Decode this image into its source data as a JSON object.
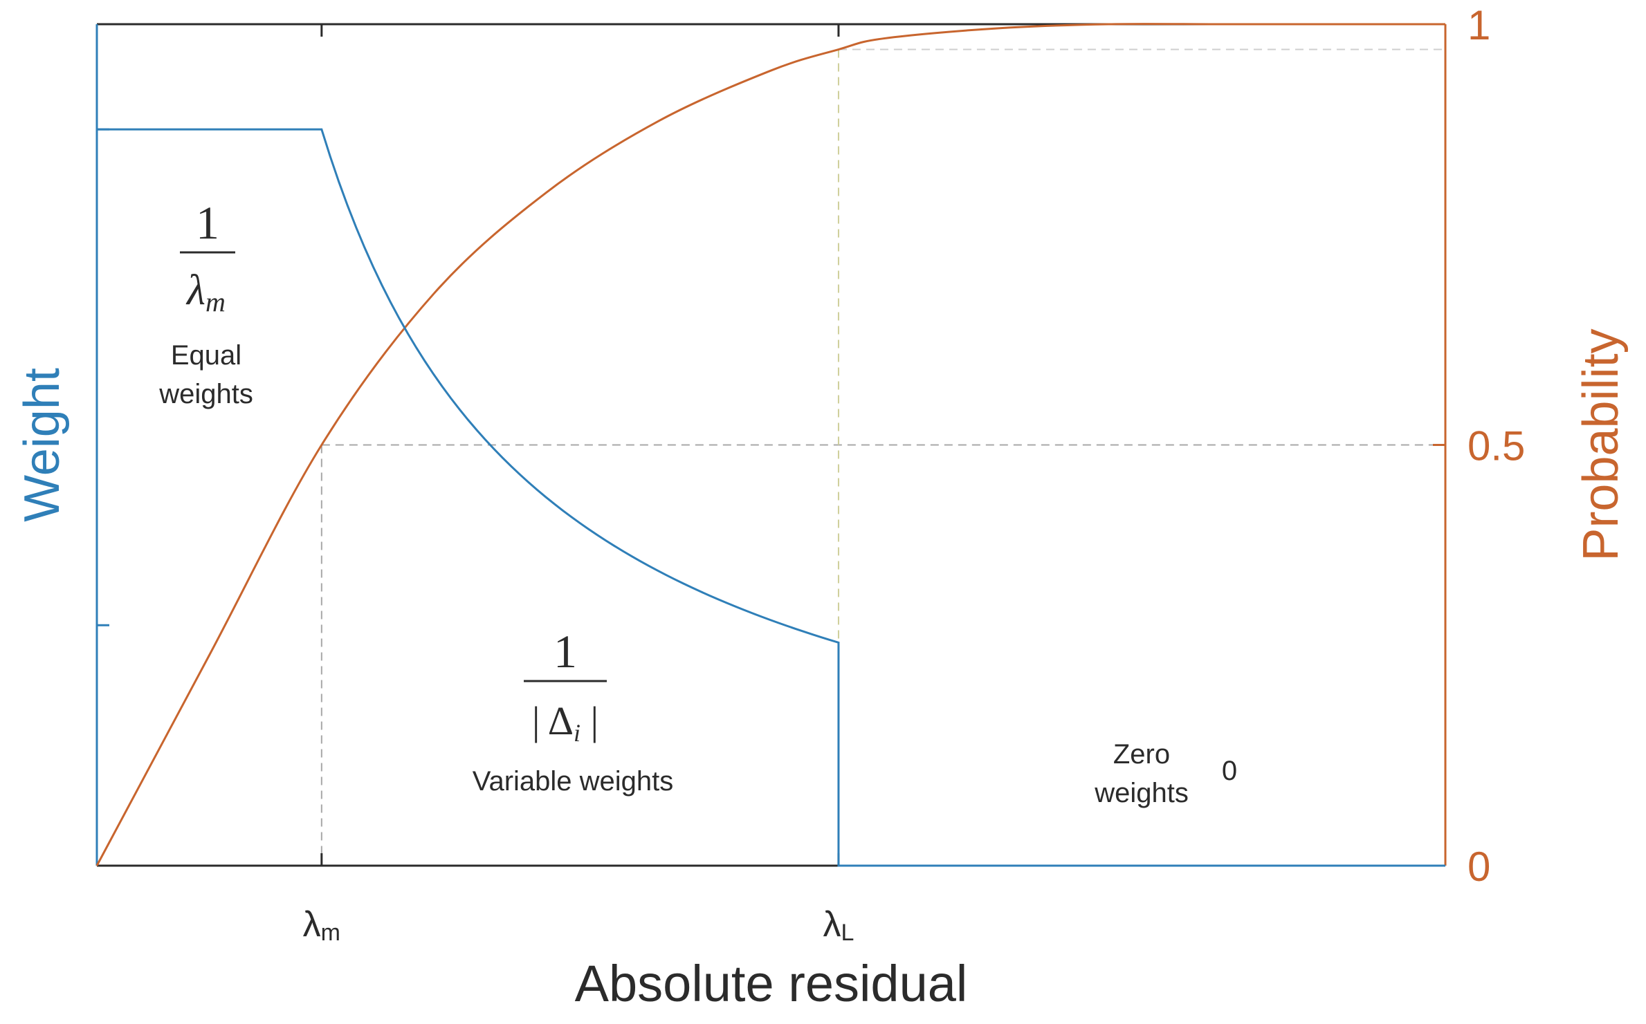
{
  "chart_data": {
    "type": "line",
    "title": "",
    "xlabel": "Absolute residual",
    "ylabel_left": "Weight",
    "ylabel_right": "Probability",
    "xlim": [
      0,
      6
    ],
    "ylim_left": [
      0,
      1
    ],
    "ylim_right": [
      0,
      1
    ],
    "x_ticks": [
      {
        "value": 1.0,
        "label": "λm",
        "base": "λ",
        "sub": "m"
      },
      {
        "value": 3.3,
        "label": "λL",
        "base": "λ",
        "sub": "L"
      }
    ],
    "right_ticks": [
      {
        "value": 0,
        "label": "0"
      },
      {
        "value": 0.5,
        "label": "0.5"
      },
      {
        "value": 1,
        "label": "1"
      }
    ],
    "left_ticks": [
      0.2857,
      0.875
    ],
    "reference_lines": {
      "lambda_m": 1.0,
      "lambda_L": 3.3,
      "probability_half": 0.5,
      "probability_at_lambda_L": 0.97
    },
    "series": [
      {
        "name": "Weight",
        "axis": "left",
        "color": "#2f7fb8",
        "segments": [
          {
            "region": "equal",
            "from": 0,
            "to": 1.0,
            "formula": "1/λm",
            "value": 0.875
          },
          {
            "region": "variable",
            "from": 1.0,
            "to": 3.3,
            "formula": "1/|Δi|",
            "start": 0.875,
            "end": 0.2857
          },
          {
            "region": "zero",
            "from": 3.3,
            "to": 6,
            "value": 0
          }
        ]
      },
      {
        "name": "Probability",
        "axis": "right",
        "color": "#c8652e",
        "x": [
          0,
          0.5,
          1.0,
          1.5,
          2.0,
          2.5,
          3.0,
          3.3,
          3.5,
          4.0,
          4.5,
          5.0,
          5.5,
          6.0
        ],
        "values": [
          0,
          0.25,
          0.5,
          0.68,
          0.8,
          0.885,
          0.945,
          0.97,
          0.983,
          0.995,
          1.0,
          1.0,
          1.0,
          1.0
        ]
      }
    ],
    "annotations": {
      "equal": {
        "numerator": "1",
        "denominator_base": "λ",
        "denominator_sub": "m",
        "line1": "Equal",
        "line2": "weights"
      },
      "variable": {
        "numerator": "1",
        "denominator": "| Δ",
        "denominator_sub": "i",
        "denominator_end": " |",
        "line1": "Variable weights"
      },
      "zero": {
        "line1": "Zero",
        "line2": "weights",
        "value": "0"
      }
    },
    "colors": {
      "weight": "#2f7fb8",
      "probability": "#c8652e",
      "axes": "#2b2b2b",
      "grid_dash": "#a8a8a8"
    }
  }
}
